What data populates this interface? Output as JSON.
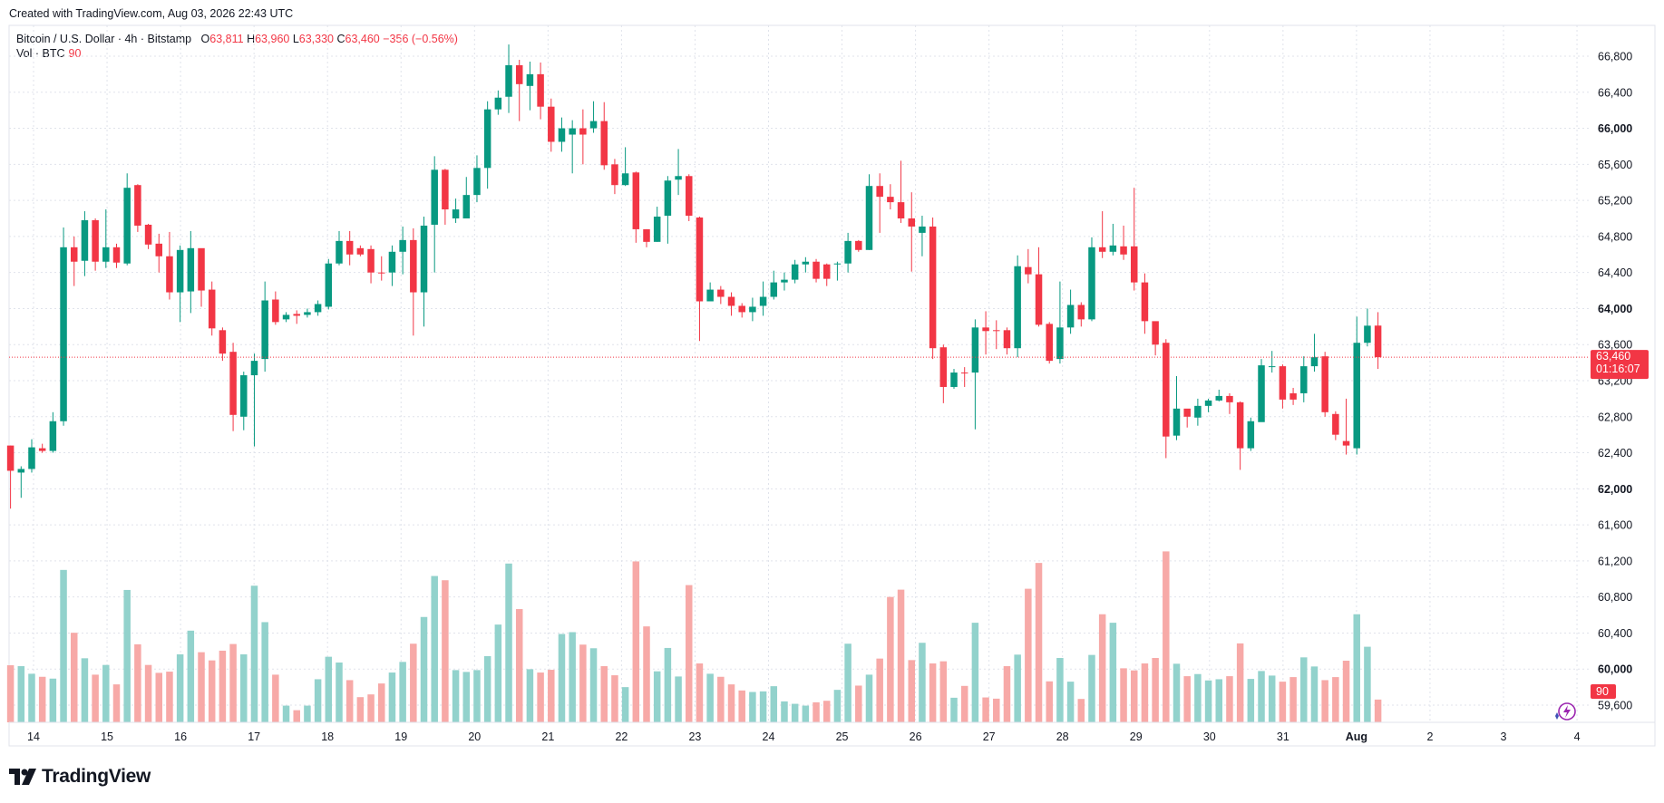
{
  "header": {
    "created": "Created with TradingView.com, Aug 03, 2026 22:43 UTC"
  },
  "legend": {
    "symbol": "Bitcoin / U.S. Dollar · 4h · Bitstamp",
    "o_label": "O",
    "o_value": "63,811",
    "h_label": "H",
    "h_value": "63,960",
    "l_label": "L",
    "l_value": "63,330",
    "c_label": "C",
    "c_value": "63,460",
    "change": "−356 (−0.56%)",
    "vol_label": "Vol · BTC",
    "vol_value": "90"
  },
  "price_badge": {
    "price": "63,460",
    "countdown": "01:16:07"
  },
  "volume_badge": "90",
  "brand": {
    "name": "TradingView"
  },
  "colors": {
    "up": "#089981",
    "down": "#f23645",
    "vol_up": "#92d2cc",
    "vol_down": "#f7a9a7",
    "grid": "#e0e3eb"
  },
  "chart_data": {
    "type": "candlestick",
    "y_ticks": [
      "66,800",
      "66,400",
      "66,000",
      "65,600",
      "65,200",
      "64,800",
      "64,400",
      "64,000",
      "63,600",
      "63,200",
      "62,800",
      "62,400",
      "62,000",
      "61,600",
      "61,200",
      "60,800",
      "60,400",
      "60,000",
      "59,600"
    ],
    "bold_ticks": [
      "66,000",
      "64,000",
      "62,000",
      "60,000"
    ],
    "x_ticks": [
      "14",
      "15",
      "16",
      "17",
      "18",
      "19",
      "20",
      "21",
      "22",
      "23",
      "24",
      "25",
      "26",
      "27",
      "28",
      "29",
      "30",
      "31",
      "Aug",
      "2",
      "3",
      "4"
    ],
    "last_price": 63460,
    "candles": [
      [
        62480,
        62200,
        62480,
        61780,
        "d",
        1.88
      ],
      [
        62180,
        62220,
        62250,
        61900,
        "u",
        1.85
      ],
      [
        62220,
        62460,
        62550,
        62180,
        "u",
        1.6
      ],
      [
        62450,
        62420,
        62500,
        62400,
        "d",
        1.5
      ],
      [
        62420,
        62750,
        62850,
        62400,
        "u",
        1.44
      ],
      [
        62750,
        64680,
        64900,
        62700,
        "u",
        5.02
      ],
      [
        64680,
        64520,
        64800,
        64250,
        "d",
        2.95
      ],
      [
        64530,
        64980,
        65080,
        64360,
        "u",
        2.11
      ],
      [
        64980,
        64520,
        65000,
        64420,
        "d",
        1.57
      ],
      [
        64520,
        64680,
        65100,
        64450,
        "u",
        1.89
      ],
      [
        64680,
        64510,
        64720,
        64450,
        "d",
        1.25
      ],
      [
        64500,
        65340,
        65500,
        64480,
        "u",
        4.36
      ],
      [
        65370,
        64920,
        65380,
        64850,
        "d",
        2.57
      ],
      [
        64930,
        64710,
        64940,
        64660,
        "d",
        1.89
      ],
      [
        64720,
        64580,
        64830,
        64400,
        "d",
        1.63
      ],
      [
        64580,
        64180,
        64850,
        64100,
        "d",
        1.67
      ],
      [
        64180,
        64650,
        64700,
        63850,
        "u",
        2.24
      ],
      [
        64670,
        64190,
        64860,
        63950,
        "u",
        3.02
      ],
      [
        64670,
        64200,
        64660,
        64020,
        "d",
        2.31
      ],
      [
        64210,
        63780,
        64300,
        63700,
        "d",
        2.04
      ],
      [
        63760,
        63500,
        63790,
        63420,
        "d",
        2.36
      ],
      [
        63520,
        62820,
        63620,
        62640,
        "d",
        2.58
      ],
      [
        62800,
        63260,
        63300,
        62650,
        "u",
        2.24
      ],
      [
        63260,
        63420,
        63500,
        62470,
        "u",
        4.5
      ],
      [
        63440,
        64090,
        64300,
        63300,
        "u",
        3.3
      ],
      [
        64100,
        63850,
        64190,
        63820,
        "d",
        1.57
      ],
      [
        63880,
        63930,
        63960,
        63850,
        "u",
        0.55
      ],
      [
        63920,
        63940,
        63980,
        63830,
        "d",
        0.4
      ],
      [
        63930,
        63960,
        64000,
        63900,
        "u",
        0.55
      ],
      [
        63960,
        64050,
        64090,
        63920,
        "u",
        1.42
      ],
      [
        64020,
        64500,
        64550,
        63990,
        "u",
        2.16
      ],
      [
        64500,
        64750,
        64860,
        64480,
        "u",
        1.97
      ],
      [
        64750,
        64600,
        64860,
        64480,
        "d",
        1.39
      ],
      [
        64600,
        64670,
        64700,
        64580,
        "d",
        0.83
      ],
      [
        64660,
        64400,
        64700,
        64280,
        "d",
        0.92
      ],
      [
        64400,
        64390,
        64580,
        64310,
        "d",
        1.28
      ],
      [
        64400,
        64630,
        64700,
        64250,
        "u",
        1.64
      ],
      [
        64630,
        64760,
        64910,
        64380,
        "u",
        1.99
      ],
      [
        64760,
        64180,
        64890,
        63700,
        "d",
        2.59
      ],
      [
        64180,
        64920,
        65020,
        63800,
        "u",
        3.47
      ],
      [
        64930,
        65540,
        65690,
        64400,
        "u",
        4.82
      ],
      [
        65540,
        65100,
        65550,
        64930,
        "d",
        4.68
      ],
      [
        65100,
        65000,
        65220,
        64950,
        "u",
        1.72
      ],
      [
        65000,
        65260,
        65460,
        65000,
        "u",
        1.66
      ],
      [
        65260,
        65560,
        65700,
        65180,
        "u",
        1.72
      ],
      [
        65560,
        66210,
        66300,
        65330,
        "u",
        2.18
      ],
      [
        66210,
        66340,
        66420,
        66150,
        "u",
        3.22
      ],
      [
        66350,
        66700,
        66930,
        66170,
        "u",
        5.23
      ],
      [
        66700,
        66490,
        66760,
        66080,
        "d",
        3.73
      ],
      [
        66470,
        66600,
        66740,
        66200,
        "u",
        1.75
      ],
      [
        66600,
        66240,
        66730,
        66100,
        "d",
        1.64
      ],
      [
        66240,
        65850,
        66330,
        65740,
        "d",
        1.73
      ],
      [
        65850,
        66000,
        66120,
        65740,
        "u",
        2.91
      ],
      [
        66000,
        65930,
        66090,
        65500,
        "u",
        2.97
      ],
      [
        65930,
        66000,
        66210,
        65600,
        "d",
        2.56
      ],
      [
        66000,
        66080,
        66300,
        65950,
        "u",
        2.44
      ],
      [
        66080,
        65590,
        66290,
        65540,
        "d",
        1.85
      ],
      [
        65600,
        65370,
        65660,
        65270,
        "d",
        1.55
      ],
      [
        65370,
        65500,
        65790,
        65360,
        "u",
        1.16
      ],
      [
        65510,
        64880,
        65520,
        64730,
        "d",
        5.3
      ],
      [
        64880,
        64740,
        64880,
        64680,
        "d",
        3.16
      ],
      [
        64740,
        65020,
        65130,
        64740,
        "u",
        1.68
      ],
      [
        65030,
        65420,
        65470,
        64720,
        "u",
        2.45
      ],
      [
        65430,
        65470,
        65770,
        65260,
        "u",
        1.51
      ],
      [
        65470,
        65030,
        65490,
        64970,
        "d",
        4.52
      ],
      [
        65010,
        64080,
        65020,
        63640,
        "d",
        1.94
      ],
      [
        64080,
        64210,
        64290,
        64100,
        "u",
        1.6
      ],
      [
        64210,
        64130,
        64250,
        64050,
        "d",
        1.5
      ],
      [
        64130,
        64030,
        64180,
        63920,
        "d",
        1.25
      ],
      [
        64030,
        63960,
        64060,
        63900,
        "d",
        1.05
      ],
      [
        63960,
        64020,
        64120,
        63860,
        "u",
        1.0
      ],
      [
        64030,
        64130,
        64300,
        63920,
        "u",
        1.02
      ],
      [
        64130,
        64290,
        64420,
        64100,
        "u",
        1.19
      ],
      [
        64290,
        64320,
        64400,
        64200,
        "u",
        0.69
      ],
      [
        64320,
        64490,
        64540,
        64280,
        "u",
        0.61
      ],
      [
        64490,
        64520,
        64570,
        64400,
        "u",
        0.55
      ],
      [
        64520,
        64330,
        64550,
        64290,
        "d",
        0.66
      ],
      [
        64330,
        64490,
        64500,
        64250,
        "d",
        0.71
      ],
      [
        64490,
        64500,
        64520,
        64310,
        "u",
        1.07
      ],
      [
        64500,
        64750,
        64840,
        64400,
        "u",
        2.59
      ],
      [
        64750,
        64650,
        64760,
        64630,
        "d",
        1.21
      ],
      [
        64650,
        65360,
        65490,
        64650,
        "u",
        1.57
      ],
      [
        65360,
        65240,
        65500,
        64840,
        "d",
        2.1
      ],
      [
        65240,
        65180,
        65380,
        65100,
        "d",
        4.13
      ],
      [
        65180,
        65000,
        65640,
        64950,
        "d",
        4.37
      ],
      [
        65000,
        64910,
        65290,
        64410,
        "d",
        2.05
      ],
      [
        64910,
        64840,
        65030,
        64580,
        "u",
        2.62
      ],
      [
        64910,
        63560,
        65010,
        63440,
        "d",
        1.94
      ],
      [
        63570,
        63130,
        63600,
        62950,
        "d",
        2.01
      ],
      [
        63130,
        63290,
        63330,
        63110,
        "u",
        0.81
      ],
      [
        63290,
        63280,
        63350,
        63130,
        "d",
        1.2
      ],
      [
        63290,
        63790,
        63880,
        62660,
        "u",
        3.28
      ],
      [
        63790,
        63750,
        63970,
        63490,
        "d",
        0.82
      ],
      [
        63750,
        63760,
        63870,
        63550,
        "d",
        0.78
      ],
      [
        63760,
        63560,
        63790,
        63490,
        "d",
        1.85
      ],
      [
        63560,
        64470,
        64590,
        63460,
        "u",
        2.23
      ],
      [
        64460,
        64380,
        64660,
        64280,
        "d",
        4.4
      ],
      [
        64380,
        63820,
        64680,
        63800,
        "d",
        5.25
      ],
      [
        63830,
        63420,
        63850,
        63390,
        "d",
        1.35
      ],
      [
        63440,
        63790,
        64300,
        63390,
        "u",
        2.12
      ],
      [
        63790,
        64040,
        64210,
        63720,
        "u",
        1.34
      ],
      [
        64040,
        63880,
        64070,
        63800,
        "d",
        0.77
      ],
      [
        63880,
        64680,
        64790,
        63860,
        "u",
        2.22
      ],
      [
        64680,
        64630,
        65080,
        64560,
        "d",
        3.56
      ],
      [
        64630,
        64700,
        64940,
        64590,
        "u",
        3.28
      ],
      [
        64690,
        64600,
        64920,
        64540,
        "d",
        1.78
      ],
      [
        64690,
        64290,
        65340,
        64200,
        "d",
        1.71
      ],
      [
        64290,
        63860,
        64390,
        63720,
        "d",
        1.94
      ],
      [
        63860,
        63600,
        63840,
        63480,
        "d",
        2.12
      ],
      [
        63620,
        62580,
        63660,
        62340,
        "d",
        5.63
      ],
      [
        62590,
        62890,
        63250,
        62540,
        "u",
        1.93
      ],
      [
        62890,
        62800,
        62880,
        62680,
        "d",
        1.52
      ],
      [
        62790,
        62920,
        63000,
        62700,
        "u",
        1.59
      ],
      [
        62920,
        62980,
        63000,
        62850,
        "u",
        1.38
      ],
      [
        62980,
        63030,
        63100,
        62970,
        "u",
        1.42
      ],
      [
        63030,
        62960,
        63060,
        62830,
        "d",
        1.52
      ],
      [
        62960,
        62450,
        62970,
        62210,
        "d",
        2.6
      ],
      [
        62450,
        62750,
        62790,
        62420,
        "u",
        1.43
      ],
      [
        62740,
        63370,
        63440,
        62760,
        "u",
        1.69
      ],
      [
        63360,
        63350,
        63530,
        63290,
        "u",
        1.54
      ],
      [
        63360,
        62990,
        63380,
        62890,
        "d",
        1.34
      ],
      [
        62990,
        63060,
        63120,
        62930,
        "d",
        1.49
      ],
      [
        63060,
        63360,
        63470,
        62960,
        "u",
        2.14
      ],
      [
        63360,
        63460,
        63720,
        63300,
        "u",
        1.84
      ],
      [
        63470,
        62850,
        63520,
        62800,
        "d",
        1.39
      ],
      [
        62830,
        62600,
        62860,
        62540,
        "d",
        1.49
      ],
      [
        62530,
        62480,
        63000,
        62380,
        "d",
        2.03
      ],
      [
        62450,
        63620,
        63910,
        62380,
        "u",
        3.56
      ],
      [
        63620,
        63810,
        64000,
        63580,
        "u",
        2.49
      ],
      [
        63811,
        63460,
        63960,
        63330,
        "d",
        0.75
      ]
    ]
  }
}
